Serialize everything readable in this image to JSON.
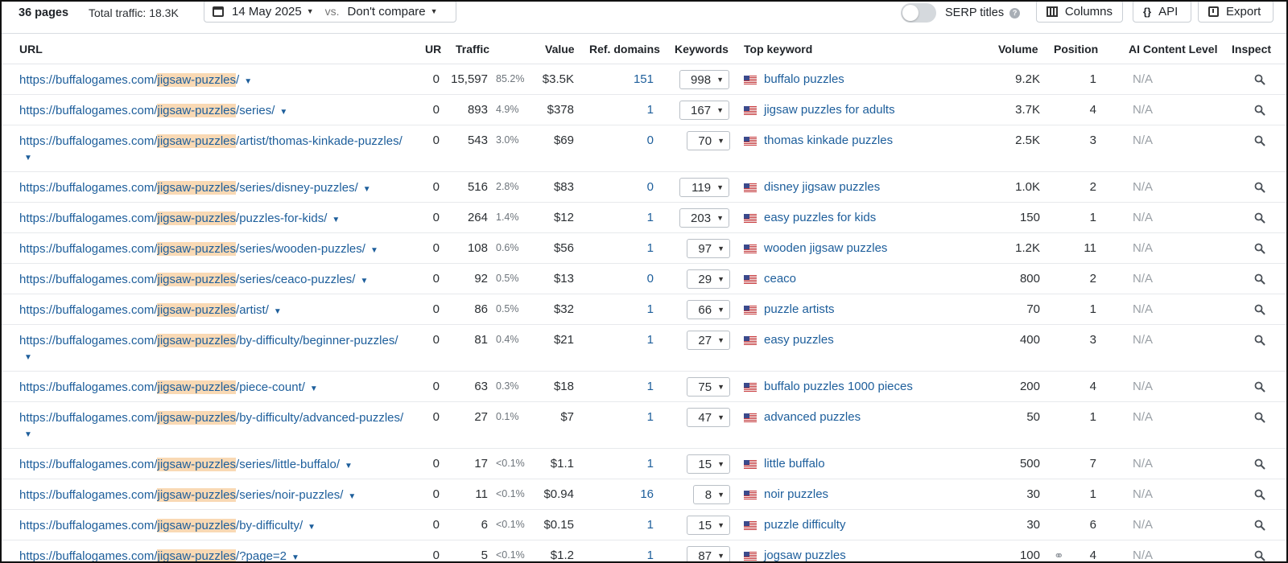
{
  "toolbar": {
    "pages": "36 pages",
    "total_traffic": "Total traffic: 18.3K",
    "date": "14 May 2025",
    "vs": "vs.",
    "compare": "Don't compare",
    "serp_titles": "SERP titles",
    "serp_help": "?",
    "columns": "Columns",
    "api": "API",
    "export": "Export"
  },
  "headers": {
    "url": "URL",
    "ur": "UR",
    "traffic": "Traffic",
    "value": "Value",
    "ref_domains": "Ref. domains",
    "keywords": "Keywords",
    "top_keyword": "Top keyword",
    "volume": "Volume",
    "position": "Position",
    "ai": "AI Content Level",
    "inspect": "Inspect"
  },
  "rows": [
    {
      "pre": "https://buffalogames.com/",
      "hl": "jigsaw-puzzles",
      "post": "/",
      "ur": "0",
      "traffic": "15,597",
      "pct": "85.2%",
      "value": "$3.5K",
      "ref": "151",
      "kw": "998",
      "top": "buffalo puzzles",
      "vol": "9.2K",
      "pos": "1",
      "ai": "N/A"
    },
    {
      "pre": "https://buffalogames.com/",
      "hl": "jigsaw-puzzles",
      "post": "/series/",
      "ur": "0",
      "traffic": "893",
      "pct": "4.9%",
      "value": "$378",
      "ref": "1",
      "kw": "167",
      "top": "jigsaw puzzles for adults",
      "vol": "3.7K",
      "pos": "4",
      "ai": "N/A"
    },
    {
      "pre": "https://buffalogames.com/",
      "hl": "jigsaw-puzzles",
      "post": "/artist/thomas-kinkade-puzzles/",
      "ur": "0",
      "traffic": "543",
      "pct": "3.0%",
      "value": "$69",
      "ref": "0",
      "kw": "70",
      "top": "thomas kinkade puzzles",
      "vol": "2.5K",
      "pos": "3",
      "ai": "N/A"
    },
    {
      "pre": "https://buffalogames.com/",
      "hl": "jigsaw-puzzles",
      "post": "/series/disney-puzzles/",
      "ur": "0",
      "traffic": "516",
      "pct": "2.8%",
      "value": "$83",
      "ref": "0",
      "kw": "119",
      "top": "disney jigsaw puzzles",
      "vol": "1.0K",
      "pos": "2",
      "ai": "N/A"
    },
    {
      "pre": "https://buffalogames.com/",
      "hl": "jigsaw-puzzles",
      "post": "/puzzles-for-kids/",
      "ur": "0",
      "traffic": "264",
      "pct": "1.4%",
      "value": "$12",
      "ref": "1",
      "kw": "203",
      "top": "easy puzzles for kids",
      "vol": "150",
      "pos": "1",
      "ai": "N/A"
    },
    {
      "pre": "https://buffalogames.com/",
      "hl": "jigsaw-puzzles",
      "post": "/series/wooden-puzzles/",
      "ur": "0",
      "traffic": "108",
      "pct": "0.6%",
      "value": "$56",
      "ref": "1",
      "kw": "97",
      "top": "wooden jigsaw puzzles",
      "vol": "1.2K",
      "pos": "11",
      "ai": "N/A"
    },
    {
      "pre": "https://buffalogames.com/",
      "hl": "jigsaw-puzzles",
      "post": "/series/ceaco-puzzles/",
      "ur": "0",
      "traffic": "92",
      "pct": "0.5%",
      "value": "$13",
      "ref": "0",
      "kw": "29",
      "top": "ceaco",
      "vol": "800",
      "pos": "2",
      "ai": "N/A"
    },
    {
      "pre": "https://buffalogames.com/",
      "hl": "jigsaw-puzzles",
      "post": "/artist/",
      "ur": "0",
      "traffic": "86",
      "pct": "0.5%",
      "value": "$32",
      "ref": "1",
      "kw": "66",
      "top": "puzzle artists",
      "vol": "70",
      "pos": "1",
      "ai": "N/A"
    },
    {
      "pre": "https://buffalogames.com/",
      "hl": "jigsaw-puzzles",
      "post": "/by-difficulty/beginner-puzzles/",
      "ur": "0",
      "traffic": "81",
      "pct": "0.4%",
      "value": "$21",
      "ref": "1",
      "kw": "27",
      "top": "easy puzzles",
      "vol": "400",
      "pos": "3",
      "ai": "N/A"
    },
    {
      "pre": "https://buffalogames.com/",
      "hl": "jigsaw-puzzles",
      "post": "/piece-count/",
      "ur": "0",
      "traffic": "63",
      "pct": "0.3%",
      "value": "$18",
      "ref": "1",
      "kw": "75",
      "top": "buffalo puzzles 1000 pieces",
      "vol": "200",
      "pos": "4",
      "ai": "N/A"
    },
    {
      "pre": "https://buffalogames.com/",
      "hl": "jigsaw-puzzles",
      "post": "/by-difficulty/advanced-puzzles/",
      "ur": "0",
      "traffic": "27",
      "pct": "0.1%",
      "value": "$7",
      "ref": "1",
      "kw": "47",
      "top": "advanced puzzles",
      "vol": "50",
      "pos": "1",
      "ai": "N/A"
    },
    {
      "pre": "https://buffalogames.com/",
      "hl": "jigsaw-puzzles",
      "post": "/series/little-buffalo/",
      "ur": "0",
      "traffic": "17",
      "pct": "<0.1%",
      "value": "$1.1",
      "ref": "1",
      "kw": "15",
      "top": "little buffalo",
      "vol": "500",
      "pos": "7",
      "ai": "N/A"
    },
    {
      "pre": "https://buffalogames.com/",
      "hl": "jigsaw-puzzles",
      "post": "/series/noir-puzzles/",
      "ur": "0",
      "traffic": "11",
      "pct": "<0.1%",
      "value": "$0.94",
      "ref": "16",
      "kw": "8",
      "top": "noir puzzles",
      "vol": "30",
      "pos": "1",
      "ai": "N/A"
    },
    {
      "pre": "https://buffalogames.com/",
      "hl": "jigsaw-puzzles",
      "post": "/by-difficulty/",
      "ur": "0",
      "traffic": "6",
      "pct": "<0.1%",
      "value": "$0.15",
      "ref": "1",
      "kw": "15",
      "top": "puzzle difficulty",
      "vol": "30",
      "pos": "6",
      "ai": "N/A"
    },
    {
      "pre": "https://buffalogames.com/",
      "hl": "jigsaw-puzzles",
      "post": "/?page=2",
      "ur": "0",
      "traffic": "5",
      "pct": "<0.1%",
      "value": "$1.2",
      "ref": "1",
      "kw": "87",
      "top": "jogsaw puzzles",
      "vol": "100",
      "pos": "4",
      "ai": "N/A",
      "link_icon": "link-icon"
    }
  ],
  "icons": {
    "calendar": "calendar-icon",
    "flag": "us-flag-icon",
    "inspect": "search-icon",
    "columns": "columns-icon",
    "api": "code-braces-icon",
    "export": "export-icon"
  },
  "colors": {
    "link": "#1d5e9b",
    "highlight": "#f9d9b4",
    "muted": "#9aa0a6"
  }
}
